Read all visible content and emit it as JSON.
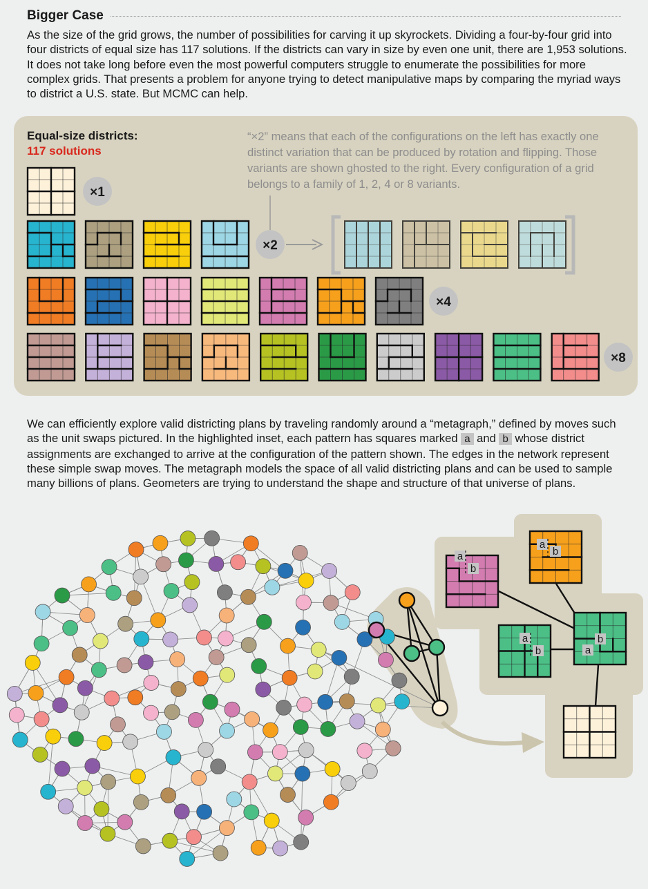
{
  "header": {
    "title": "Bigger Case",
    "intro": "As the size of the grid grows, the number of possibilities for carving it up skyrockets. Dividing a four-by-four grid into four districts of equal size has 117 solutions. If the districts can vary in size by even one unit, there are 1,953 solutions. It does not take long before even the most powerful computers strug­gle to enumerate the possibilities for more complex grids. That presents a problem for anyone trying to detect manipulative maps by comparing the myriad ways to district a U.S. state. But MCMC can help."
  },
  "panel": {
    "heading": "Equal-size districts:",
    "count": "117 solutions",
    "note": "“×2” means that each of the configurations on the left has exactly one distinct variation that can be produced by rotation and flipping. Those variants are shown ghosted to the right. Every configuration of a grid belongs to a family of 1, 2, 4 or 8 variants.",
    "multipliers": [
      "×1",
      "×2",
      "×4",
      "×8"
    ],
    "rows": [
      [
        "#fdf1da"
      ],
      [
        "#27b4cf",
        "#aca080",
        "#f8cf0a",
        "#9dd6e4"
      ],
      [
        "#f07c24",
        "#2671b3",
        "#f4b2cc",
        "#e1e878",
        "#d27cb0",
        "#f6a01c",
        "#7f7f7f"
      ],
      [
        "#c09a93",
        "#c4b1d9",
        "#b68c56",
        "#f8b97d",
        "#b5c222",
        "#2a9a47",
        "#cccccc",
        "#8b5aa6",
        "#4bbf86",
        "#f28d8c"
      ]
    ],
    "ghost_colors": [
      "#9dd6e4",
      "#c8bb9b",
      "#f1dc7b",
      "#b7e0e6"
    ]
  },
  "metagraph": {
    "text_before_a": "We can efficiently explore valid districting plans by traveling randomly around a “metagraph,” defined by moves such as the unit swaps pictured. In the highlighted inset, each pattern has squares marked",
    "square_a": "a",
    "text_and": "and",
    "square_b": "b",
    "text_after_b": "whose district assignments are exchanged to arrive at the configuration of the pattern shown. The edges in the network represent these simple swap moves. The metagraph models the space of all valid districting plans and can be used to sample many billions of plans. Geometers are trying to under­stand the shape and structure of that universe of plans.",
    "node_palette": [
      "#8b5aa6",
      "#f4b2cc",
      "#2a9a47",
      "#cccccc",
      "#e1e878",
      "#b5c222",
      "#f7b27a",
      "#f28d8c",
      "#c4b1d9",
      "#b68c56",
      "#9dd6e4",
      "#27b4cf",
      "#2671b3",
      "#f07c24",
      "#f6a01c",
      "#7f7f7f",
      "#c09a93",
      "#4bbf86",
      "#d27cb0",
      "#f8cf0a",
      "#aca080"
    ],
    "inset_colors": {
      "orange": "#f6a01c",
      "pink": "#d27cb0",
      "green": "#4bbf86",
      "cream": "#fdf1da"
    }
  }
}
